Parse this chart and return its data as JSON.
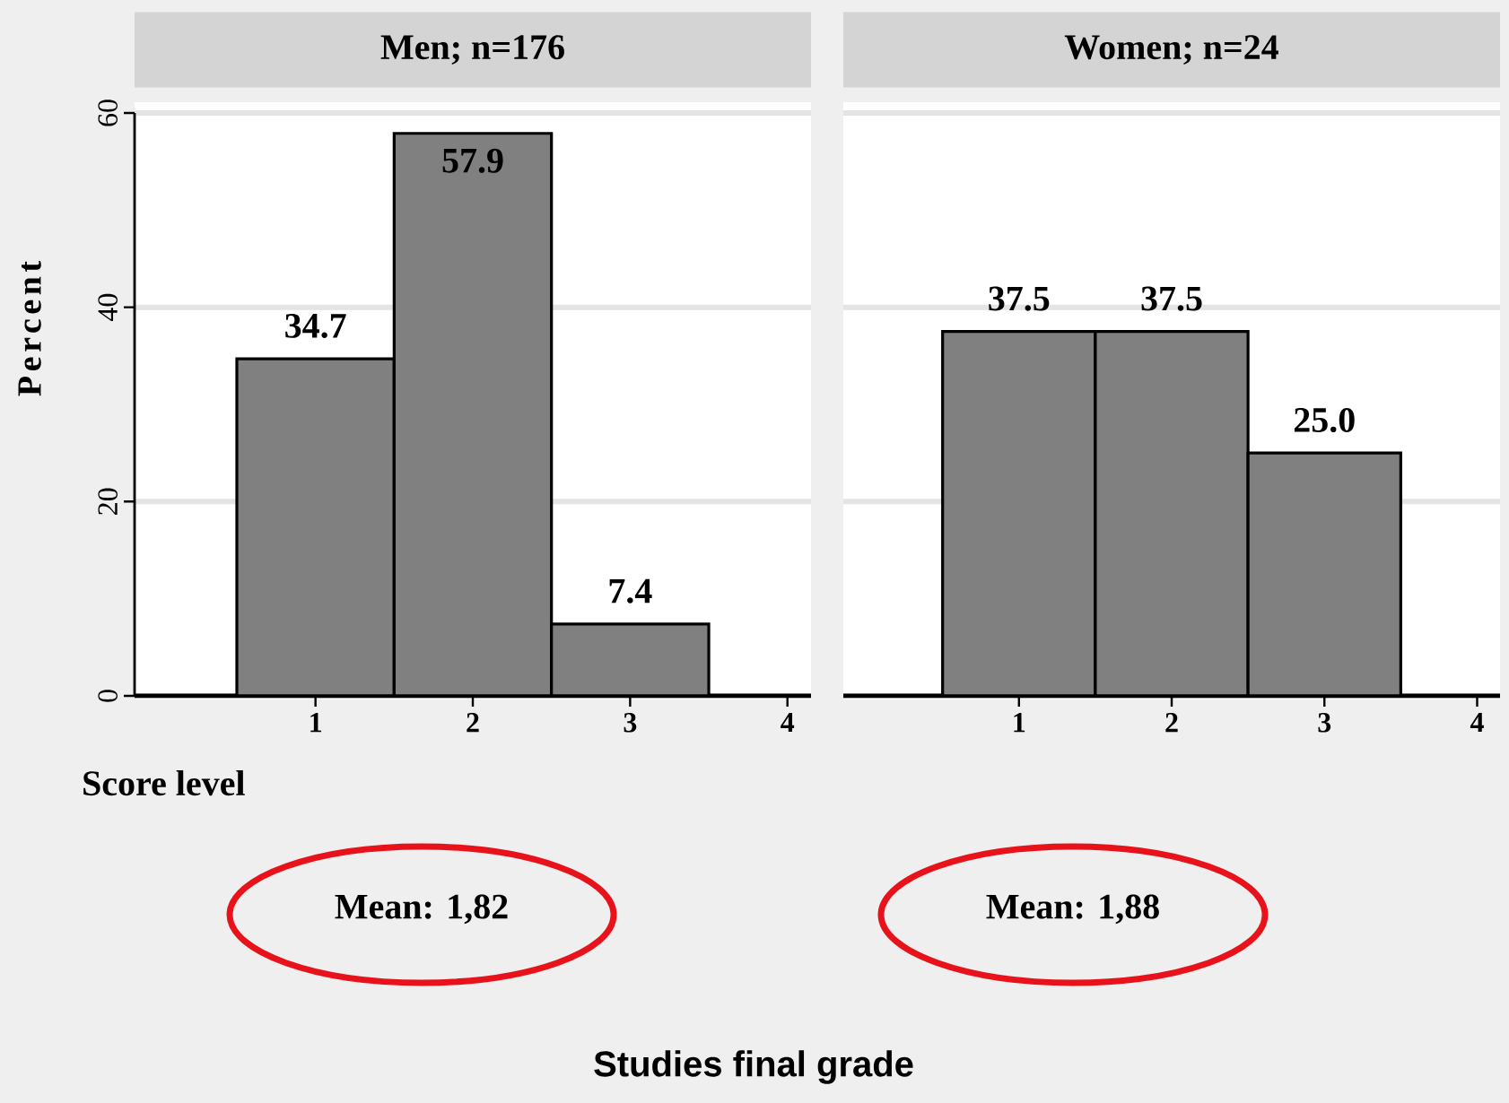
{
  "chart_data": [
    {
      "type": "histogram",
      "title": "Men; n=176",
      "xlabel": "Score level",
      "ylabel": "Percent",
      "bins": [
        0.5,
        1.5,
        2.5,
        3.5
      ],
      "values": [
        34.7,
        57.9,
        7.4
      ],
      "value_labels": [
        "34.7",
        "57.9",
        "7.4"
      ],
      "color": "#808080",
      "xlim": [
        -0.15,
        4.15
      ],
      "ylim": [
        0,
        60
      ],
      "xticks": [
        1,
        2,
        3,
        4
      ],
      "yticks": [
        0,
        20,
        40,
        60
      ],
      "grid": "y",
      "annotations": [
        "Mean: 1,82",
        "Studies final grade"
      ]
    },
    {
      "type": "histogram",
      "title": "Women; n=24",
      "bins": [
        0.5,
        1.5,
        2.5,
        3.5
      ],
      "values": [
        37.5,
        37.5,
        25.0
      ],
      "value_labels": [
        "37.5",
        "37.5",
        "25.0"
      ],
      "color": "#808080",
      "xlim": [
        -0.15,
        4.15
      ],
      "ylim": [
        0,
        60
      ],
      "xticks": [
        1,
        2,
        3,
        4
      ],
      "yticks": [
        0,
        20,
        40,
        60
      ],
      "grid": "y",
      "tick_labels": "x",
      "annotations": [
        "Mean: 1,88"
      ]
    }
  ]
}
